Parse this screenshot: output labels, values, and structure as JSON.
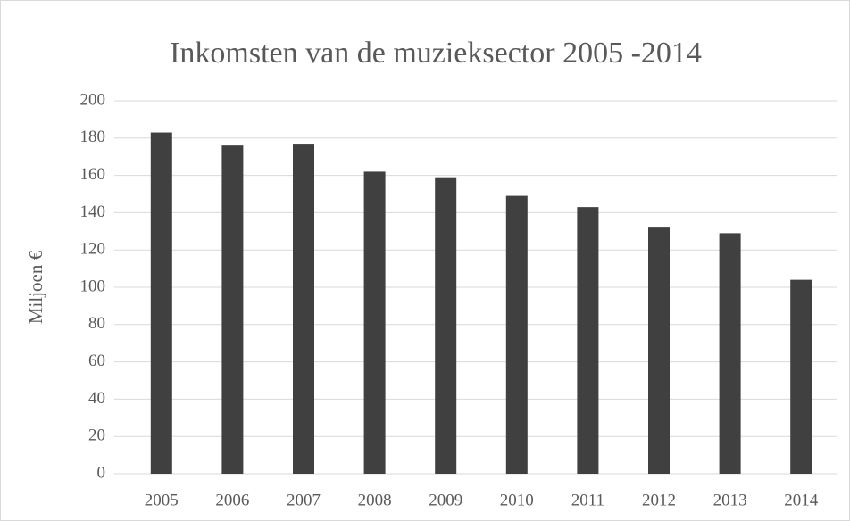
{
  "chart_data": {
    "type": "bar",
    "title": "Inkomsten van de muzieksector 2005 -2014",
    "y_label": "Miljoen €",
    "categories": [
      "2005",
      "2006",
      "2007",
      "2008",
      "2009",
      "2010",
      "2011",
      "2012",
      "2013",
      "2014"
    ],
    "values": [
      183,
      176,
      177,
      162,
      159,
      149,
      143,
      132,
      129,
      104
    ],
    "color": "#404040",
    "ylim": [
      0,
      200
    ],
    "yticks": [
      0,
      20,
      40,
      60,
      80,
      100,
      120,
      140,
      160,
      180,
      200
    ],
    "grid": true
  }
}
